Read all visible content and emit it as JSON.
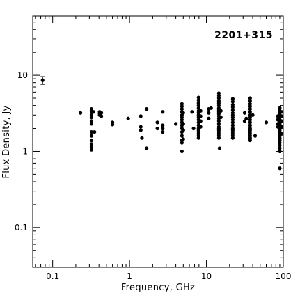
{
  "chart_data": {
    "type": "scatter",
    "title": "2201+315",
    "xlabel": "Frequency, GHz",
    "ylabel": "Flux Density, Jy",
    "x_scale": "log",
    "y_scale": "log",
    "xlim": [
      0.055,
      100
    ],
    "ylim": [
      0.03,
      60
    ],
    "x_ticks": [
      {
        "value": 0.1,
        "label": "0.1"
      },
      {
        "value": 1,
        "label": "1"
      },
      {
        "value": 10,
        "label": "10"
      },
      {
        "value": 100,
        "label": "100"
      }
    ],
    "y_ticks": [
      {
        "value": 0.1,
        "label": "0.1"
      },
      {
        "value": 1,
        "label": "1"
      },
      {
        "value": 10,
        "label": "10"
      }
    ],
    "grid": false,
    "legend": "none",
    "marker_color": "#000000",
    "series": [
      {
        "points": [
          [
            0.074,
            8.6
          ],
          [
            0.23,
            3.2
          ],
          [
            0.32,
            3.6
          ],
          [
            0.32,
            3.3
          ],
          [
            0.32,
            3.0
          ],
          [
            0.32,
            2.8
          ],
          [
            0.32,
            2.5
          ],
          [
            0.32,
            2.3
          ],
          [
            0.32,
            1.8
          ],
          [
            0.32,
            1.6
          ],
          [
            0.32,
            1.4
          ],
          [
            0.32,
            1.25
          ],
          [
            0.32,
            1.15
          ],
          [
            0.32,
            1.05
          ],
          [
            0.34,
            3.3
          ],
          [
            0.35,
            1.8
          ],
          [
            0.408,
            3.3
          ],
          [
            0.408,
            3.15
          ],
          [
            0.408,
            3.0
          ],
          [
            0.43,
            3.2
          ],
          [
            0.43,
            2.9
          ],
          [
            0.6,
            2.4
          ],
          [
            0.6,
            2.25
          ],
          [
            0.96,
            2.7
          ],
          [
            1.4,
            2.9
          ],
          [
            1.4,
            2.1
          ],
          [
            1.4,
            1.9
          ],
          [
            1.45,
            1.5
          ],
          [
            1.67,
            3.6
          ],
          [
            1.67,
            1.1
          ],
          [
            2.3,
            2.4
          ],
          [
            2.3,
            2.0
          ],
          [
            2.7,
            3.3
          ],
          [
            2.7,
            2.2
          ],
          [
            2.7,
            2.0
          ],
          [
            2.7,
            1.8
          ],
          [
            4.0,
            2.3
          ],
          [
            4.8,
            4.2
          ],
          [
            4.8,
            3.9
          ],
          [
            4.8,
            3.6
          ],
          [
            4.8,
            3.3
          ],
          [
            4.8,
            3.0
          ],
          [
            4.8,
            2.8
          ],
          [
            4.8,
            2.6
          ],
          [
            4.8,
            2.4
          ],
          [
            4.8,
            2.2
          ],
          [
            4.8,
            2.0
          ],
          [
            4.8,
            1.8
          ],
          [
            4.8,
            1.6
          ],
          [
            4.8,
            1.4
          ],
          [
            4.8,
            1.3
          ],
          [
            4.8,
            1.0
          ],
          [
            5.0,
            3.2
          ],
          [
            5.0,
            2.3
          ],
          [
            5.0,
            1.9
          ],
          [
            5.0,
            1.45
          ],
          [
            6.5,
            3.3
          ],
          [
            6.8,
            2.0
          ],
          [
            7.9,
            5.1
          ],
          [
            7.9,
            4.7
          ],
          [
            7.9,
            4.3
          ],
          [
            7.9,
            4.0
          ],
          [
            7.9,
            3.7
          ],
          [
            7.9,
            3.4
          ],
          [
            7.9,
            3.2
          ],
          [
            7.9,
            3.0
          ],
          [
            7.9,
            2.8
          ],
          [
            7.9,
            2.6
          ],
          [
            7.9,
            2.4
          ],
          [
            7.9,
            2.2
          ],
          [
            7.9,
            2.0
          ],
          [
            7.9,
            1.9
          ],
          [
            7.9,
            1.8
          ],
          [
            7.9,
            1.7
          ],
          [
            7.9,
            1.6
          ],
          [
            7.9,
            1.5
          ],
          [
            8.4,
            3.4
          ],
          [
            8.4,
            2.9
          ],
          [
            8.4,
            2.5
          ],
          [
            8.4,
            2.1
          ],
          [
            10.7,
            3.6
          ],
          [
            10.7,
            3.2
          ],
          [
            10.7,
            2.7
          ],
          [
            11.5,
            3.7
          ],
          [
            14.5,
            5.8
          ],
          [
            14.5,
            5.4
          ],
          [
            14.5,
            5.0
          ],
          [
            14.5,
            4.6
          ],
          [
            14.5,
            4.3
          ],
          [
            14.5,
            4.0
          ],
          [
            14.5,
            3.7
          ],
          [
            14.5,
            3.5
          ],
          [
            14.5,
            3.3
          ],
          [
            14.5,
            3.1
          ],
          [
            14.5,
            2.9
          ],
          [
            14.5,
            2.7
          ],
          [
            14.5,
            2.5
          ],
          [
            14.5,
            2.3
          ],
          [
            14.5,
            2.1
          ],
          [
            14.5,
            2.0
          ],
          [
            14.5,
            1.9
          ],
          [
            14.5,
            1.8
          ],
          [
            14.5,
            1.7
          ],
          [
            14.5,
            1.6
          ],
          [
            14.5,
            1.5
          ],
          [
            14.8,
            1.1
          ],
          [
            15.4,
            3.4
          ],
          [
            15.4,
            2.8
          ],
          [
            22.0,
            4.9
          ],
          [
            22.0,
            4.5
          ],
          [
            22.0,
            4.1
          ],
          [
            22.0,
            3.8
          ],
          [
            22.0,
            3.5
          ],
          [
            22.0,
            3.2
          ],
          [
            22.0,
            3.0
          ],
          [
            22.0,
            2.8
          ],
          [
            22.0,
            2.6
          ],
          [
            22.0,
            2.4
          ],
          [
            22.0,
            2.2
          ],
          [
            22.0,
            2.0
          ],
          [
            22.0,
            1.9
          ],
          [
            22.0,
            1.8
          ],
          [
            22.0,
            1.7
          ],
          [
            22.0,
            1.6
          ],
          [
            22.0,
            1.5
          ],
          [
            31.4,
            2.5
          ],
          [
            31.4,
            3.2
          ],
          [
            33.0,
            2.7
          ],
          [
            37.0,
            5.0
          ],
          [
            37.0,
            4.6
          ],
          [
            37.0,
            4.2
          ],
          [
            37.0,
            3.9
          ],
          [
            37.0,
            3.6
          ],
          [
            37.0,
            3.3
          ],
          [
            37.0,
            3.0
          ],
          [
            37.0,
            2.8
          ],
          [
            37.0,
            2.6
          ],
          [
            37.0,
            2.4
          ],
          [
            37.0,
            2.2
          ],
          [
            37.0,
            2.0
          ],
          [
            37.0,
            1.9
          ],
          [
            37.0,
            1.8
          ],
          [
            37.0,
            1.7
          ],
          [
            37.0,
            1.6
          ],
          [
            37.0,
            1.5
          ],
          [
            37.0,
            1.4
          ],
          [
            40.0,
            3.0
          ],
          [
            43.0,
            1.6
          ],
          [
            60.0,
            2.4
          ],
          [
            85.0,
            2.9
          ],
          [
            85.0,
            2.6
          ],
          [
            85.0,
            2.3
          ],
          [
            85.0,
            2.1
          ],
          [
            90.0,
            3.7
          ],
          [
            90.0,
            3.4
          ],
          [
            90.0,
            3.2
          ],
          [
            90.0,
            3.0
          ],
          [
            90.0,
            2.8
          ],
          [
            90.0,
            2.6
          ],
          [
            90.0,
            2.5
          ],
          [
            90.0,
            2.4
          ],
          [
            90.0,
            2.3
          ],
          [
            90.0,
            2.2
          ],
          [
            90.0,
            2.1
          ],
          [
            90.0,
            2.0
          ],
          [
            90.0,
            1.9
          ],
          [
            90.0,
            1.8
          ],
          [
            90.0,
            1.7
          ],
          [
            90.0,
            1.6
          ],
          [
            90.0,
            1.5
          ],
          [
            90.0,
            1.4
          ],
          [
            90.0,
            1.3
          ],
          [
            90.0,
            1.2
          ],
          [
            90.0,
            1.1
          ],
          [
            90.0,
            1.0
          ],
          [
            90.0,
            0.6
          ],
          [
            95.0,
            3.3
          ],
          [
            95.0,
            2.9
          ],
          [
            95.0,
            2.5
          ],
          [
            95.0,
            2.1
          ],
          [
            95.0,
            1.7
          ]
        ],
        "error_bars": [
          {
            "x": 0.074,
            "y": 8.6,
            "ylow": 7.6,
            "yhigh": 9.6
          }
        ]
      }
    ]
  }
}
